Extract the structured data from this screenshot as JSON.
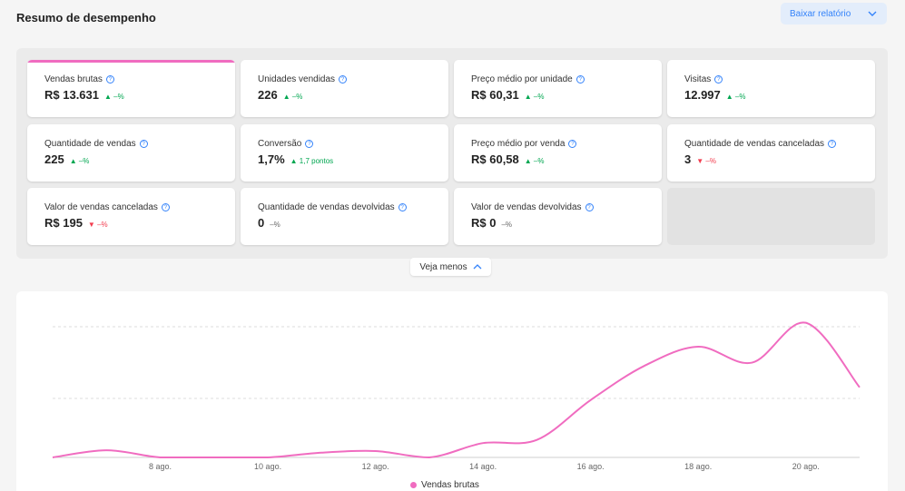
{
  "header": {
    "title": "Resumo de desempenho",
    "download_label": "Baixar relatório"
  },
  "metrics": [
    {
      "label": "Vendas brutas",
      "value": "R$ 13.631",
      "delta": "▲ –%",
      "trend": "up",
      "active": true
    },
    {
      "label": "Unidades vendidas",
      "value": "226",
      "delta": "▲ –%",
      "trend": "up"
    },
    {
      "label": "Preço médio por unidade",
      "value": "R$ 60,31",
      "delta": "▲ –%",
      "trend": "up"
    },
    {
      "label": "Visitas",
      "value": "12.997",
      "delta": "▲ –%",
      "trend": "up"
    },
    {
      "label": "Quantidade de vendas",
      "value": "225",
      "delta": "▲ –%",
      "trend": "up"
    },
    {
      "label": "Conversão",
      "value": "1,7%",
      "delta": "▲ 1,7 pontos",
      "trend": "up"
    },
    {
      "label": "Preço médio por venda",
      "value": "R$ 60,58",
      "delta": "▲ –%",
      "trend": "up"
    },
    {
      "label": "Quantidade de vendas canceladas",
      "value": "3",
      "delta": "▼ –%",
      "trend": "down"
    },
    {
      "label": "Valor de vendas canceladas",
      "value": "R$ 195",
      "delta": "▼ –%",
      "trend": "down"
    },
    {
      "label": "Quantidade de vendas devolvidas",
      "value": "0",
      "delta": "–%",
      "trend": "neutral"
    },
    {
      "label": "Valor de vendas devolvidas",
      "value": "R$ 0",
      "delta": "–%",
      "trend": "neutral"
    }
  ],
  "toggle": {
    "see_less_label": "Veja menos"
  },
  "colors": {
    "accent": "#f06cc0",
    "link": "#3483fa",
    "up": "#00a650",
    "down": "#f23d4f"
  },
  "chart_data": {
    "type": "line",
    "x": [
      "6 ago.",
      "7 ago.",
      "8 ago.",
      "9 ago.",
      "10 ago.",
      "11 ago.",
      "12 ago.",
      "13 ago.",
      "14 ago.",
      "15 ago.",
      "16 ago.",
      "17 ago.",
      "18 ago.",
      "19 ago.",
      "20 ago.",
      "21 ago."
    ],
    "xticks": [
      "8 ago.",
      "10 ago.",
      "12 ago.",
      "14 ago.",
      "16 ago.",
      "18 ago.",
      "20 ago."
    ],
    "series": [
      {
        "name": "Vendas brutas",
        "values": [
          0,
          90,
          0,
          0,
          0,
          60,
          80,
          0,
          180,
          220,
          720,
          1150,
          1390,
          1190,
          1690,
          880
        ]
      }
    ],
    "ylim": [
      0,
      1800
    ],
    "grid": true,
    "legend": "bottom-center"
  }
}
